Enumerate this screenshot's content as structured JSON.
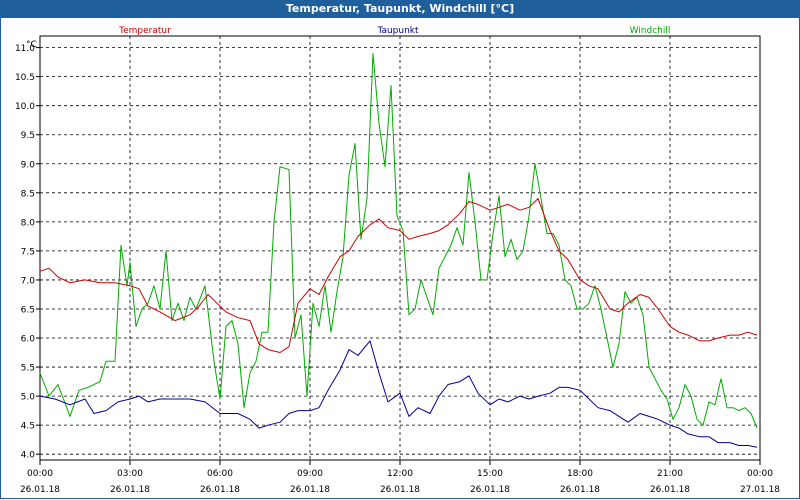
{
  "window": {
    "title": "Temperatur, Taupunkt, Windchill [°C]"
  },
  "chart_data": {
    "type": "line",
    "title": "Temperatur, Taupunkt, Windchill [°C]",
    "ylabel": "°C",
    "ylim": [
      3.9,
      11.2
    ],
    "y_ticks": [
      "4.0",
      "4.5",
      "5.0",
      "5.5",
      "6.0",
      "6.5",
      "7.0",
      "7.5",
      "8.0",
      "8.5",
      "9.0",
      "9.5",
      "10.0",
      "10.5",
      "11.0"
    ],
    "x_ticks": [
      {
        "time": "00:00",
        "date": "26.01.18"
      },
      {
        "time": "03:00",
        "date": "26.01.18"
      },
      {
        "time": "06:00",
        "date": "26.01.18"
      },
      {
        "time": "09:00",
        "date": "26.01.18"
      },
      {
        "time": "12:00",
        "date": "26.01.18"
      },
      {
        "time": "15:00",
        "date": "26.01.18"
      },
      {
        "time": "18:00",
        "date": "26.01.18"
      },
      {
        "time": "21:00",
        "date": "26.01.18"
      },
      {
        "time": "00:00",
        "date": "27.01.18"
      }
    ],
    "x_unit": "hours since 26.01.18 00:00",
    "xlim": [
      0,
      24
    ],
    "grid": true,
    "series": [
      {
        "name": "Temperatur",
        "color": "#cc0000",
        "points": [
          [
            0,
            7.15
          ],
          [
            0.3,
            7.2
          ],
          [
            0.6,
            7.05
          ],
          [
            1,
            6.95
          ],
          [
            1.5,
            7.0
          ],
          [
            2,
            6.95
          ],
          [
            2.5,
            6.95
          ],
          [
            3,
            6.9
          ],
          [
            3.3,
            6.85
          ],
          [
            3.6,
            6.55
          ],
          [
            4,
            6.45
          ],
          [
            4.5,
            6.3
          ],
          [
            5,
            6.4
          ],
          [
            5.3,
            6.55
          ],
          [
            5.6,
            6.75
          ],
          [
            5.9,
            6.6
          ],
          [
            6.2,
            6.45
          ],
          [
            6.6,
            6.35
          ],
          [
            7,
            6.3
          ],
          [
            7.3,
            5.9
          ],
          [
            7.6,
            5.8
          ],
          [
            8,
            5.75
          ],
          [
            8.3,
            5.85
          ],
          [
            8.6,
            6.6
          ],
          [
            9,
            6.85
          ],
          [
            9.3,
            6.75
          ],
          [
            9.6,
            7.05
          ],
          [
            10,
            7.4
          ],
          [
            10.3,
            7.5
          ],
          [
            10.6,
            7.75
          ],
          [
            11,
            7.95
          ],
          [
            11.3,
            8.05
          ],
          [
            11.6,
            7.9
          ],
          [
            12,
            7.85
          ],
          [
            12.3,
            7.7
          ],
          [
            12.6,
            7.75
          ],
          [
            13,
            7.8
          ],
          [
            13.3,
            7.85
          ],
          [
            13.6,
            7.95
          ],
          [
            14,
            8.15
          ],
          [
            14.3,
            8.35
          ],
          [
            14.6,
            8.3
          ],
          [
            15,
            8.2
          ],
          [
            15.3,
            8.25
          ],
          [
            15.6,
            8.3
          ],
          [
            16,
            8.2
          ],
          [
            16.3,
            8.25
          ],
          [
            16.6,
            8.4
          ],
          [
            17,
            7.85
          ],
          [
            17.3,
            7.5
          ],
          [
            17.6,
            7.35
          ],
          [
            18,
            7.0
          ],
          [
            18.3,
            6.9
          ],
          [
            18.6,
            6.85
          ],
          [
            19,
            6.5
          ],
          [
            19.3,
            6.45
          ],
          [
            19.6,
            6.6
          ],
          [
            20,
            6.75
          ],
          [
            20.3,
            6.7
          ],
          [
            20.6,
            6.5
          ],
          [
            21,
            6.2
          ],
          [
            21.3,
            6.1
          ],
          [
            21.6,
            6.05
          ],
          [
            22,
            5.95
          ],
          [
            22.3,
            5.95
          ],
          [
            22.6,
            6.0
          ],
          [
            23,
            6.05
          ],
          [
            23.3,
            6.05
          ],
          [
            23.6,
            6.1
          ],
          [
            23.9,
            6.05
          ]
        ]
      },
      {
        "name": "Taupunkt",
        "color": "#000099",
        "points": [
          [
            0,
            5.0
          ],
          [
            0.5,
            4.95
          ],
          [
            1,
            4.85
          ],
          [
            1.5,
            4.95
          ],
          [
            1.8,
            4.7
          ],
          [
            2.2,
            4.75
          ],
          [
            2.6,
            4.9
          ],
          [
            3,
            4.95
          ],
          [
            3.3,
            5.0
          ],
          [
            3.6,
            4.9
          ],
          [
            4,
            4.95
          ],
          [
            4.5,
            4.95
          ],
          [
            5,
            4.95
          ],
          [
            5.5,
            4.9
          ],
          [
            6,
            4.7
          ],
          [
            6.6,
            4.7
          ],
          [
            7,
            4.6
          ],
          [
            7.3,
            4.45
          ],
          [
            7.6,
            4.5
          ],
          [
            8,
            4.55
          ],
          [
            8.3,
            4.7
          ],
          [
            8.6,
            4.75
          ],
          [
            9,
            4.75
          ],
          [
            9.3,
            4.8
          ],
          [
            9.6,
            5.1
          ],
          [
            10,
            5.45
          ],
          [
            10.3,
            5.8
          ],
          [
            10.6,
            5.7
          ],
          [
            11,
            5.95
          ],
          [
            11.3,
            5.4
          ],
          [
            11.6,
            4.9
          ],
          [
            12,
            5.05
          ],
          [
            12.3,
            4.65
          ],
          [
            12.6,
            4.8
          ],
          [
            13,
            4.7
          ],
          [
            13.3,
            5.0
          ],
          [
            13.6,
            5.2
          ],
          [
            14,
            5.25
          ],
          [
            14.3,
            5.35
          ],
          [
            14.6,
            5.05
          ],
          [
            15,
            4.85
          ],
          [
            15.3,
            4.95
          ],
          [
            15.6,
            4.9
          ],
          [
            16,
            5.0
          ],
          [
            16.3,
            4.95
          ],
          [
            16.6,
            5.0
          ],
          [
            17,
            5.05
          ],
          [
            17.3,
            5.15
          ],
          [
            17.6,
            5.15
          ],
          [
            18,
            5.1
          ],
          [
            18.3,
            4.95
          ],
          [
            18.6,
            4.8
          ],
          [
            19,
            4.75
          ],
          [
            19.3,
            4.65
          ],
          [
            19.6,
            4.55
          ],
          [
            20,
            4.7
          ],
          [
            20.3,
            4.65
          ],
          [
            20.6,
            4.6
          ],
          [
            21,
            4.5
          ],
          [
            21.3,
            4.45
          ],
          [
            21.6,
            4.35
          ],
          [
            22,
            4.3
          ],
          [
            22.3,
            4.3
          ],
          [
            22.6,
            4.2
          ],
          [
            23,
            4.2
          ],
          [
            23.3,
            4.15
          ],
          [
            23.6,
            4.15
          ],
          [
            23.9,
            4.12
          ]
        ]
      },
      {
        "name": "Windchill",
        "color": "#00aa00",
        "points": [
          [
            0,
            5.4
          ],
          [
            0.3,
            5.0
          ],
          [
            0.6,
            5.2
          ],
          [
            1,
            4.65
          ],
          [
            1.3,
            5.1
          ],
          [
            1.6,
            5.15
          ],
          [
            2,
            5.25
          ],
          [
            2.2,
            5.6
          ],
          [
            2.5,
            5.6
          ],
          [
            2.7,
            7.6
          ],
          [
            2.9,
            6.9
          ],
          [
            3.0,
            7.3
          ],
          [
            3.2,
            6.2
          ],
          [
            3.4,
            6.5
          ],
          [
            3.6,
            6.6
          ],
          [
            3.8,
            6.9
          ],
          [
            4,
            6.5
          ],
          [
            4.2,
            7.5
          ],
          [
            4.4,
            6.3
          ],
          [
            4.6,
            6.6
          ],
          [
            4.8,
            6.3
          ],
          [
            5,
            6.7
          ],
          [
            5.2,
            6.5
          ],
          [
            5.5,
            6.9
          ],
          [
            5.8,
            5.6
          ],
          [
            6,
            4.95
          ],
          [
            6.2,
            6.2
          ],
          [
            6.4,
            6.3
          ],
          [
            6.6,
            5.9
          ],
          [
            6.8,
            4.8
          ],
          [
            7,
            5.4
          ],
          [
            7.2,
            5.6
          ],
          [
            7.4,
            6.1
          ],
          [
            7.6,
            6.1
          ],
          [
            7.8,
            8.0
          ],
          [
            8,
            8.95
          ],
          [
            8.3,
            8.9
          ],
          [
            8.5,
            6.0
          ],
          [
            8.7,
            6.4
          ],
          [
            8.9,
            5.0
          ],
          [
            9.1,
            6.6
          ],
          [
            9.3,
            6.2
          ],
          [
            9.5,
            6.9
          ],
          [
            9.7,
            6.1
          ],
          [
            9.9,
            6.8
          ],
          [
            10.1,
            7.4
          ],
          [
            10.3,
            8.8
          ],
          [
            10.5,
            9.35
          ],
          [
            10.7,
            7.7
          ],
          [
            10.9,
            8.4
          ],
          [
            11.1,
            10.9
          ],
          [
            11.3,
            9.7
          ],
          [
            11.5,
            8.95
          ],
          [
            11.7,
            10.35
          ],
          [
            11.9,
            8.1
          ],
          [
            12.1,
            7.85
          ],
          [
            12.3,
            6.4
          ],
          [
            12.5,
            6.5
          ],
          [
            12.7,
            7.0
          ],
          [
            12.9,
            6.7
          ],
          [
            13.1,
            6.4
          ],
          [
            13.3,
            7.2
          ],
          [
            13.5,
            7.4
          ],
          [
            13.7,
            7.6
          ],
          [
            13.9,
            7.9
          ],
          [
            14.1,
            7.6
          ],
          [
            14.3,
            8.85
          ],
          [
            14.5,
            8.0
          ],
          [
            14.7,
            7.0
          ],
          [
            14.9,
            7.0
          ],
          [
            15.1,
            7.8
          ],
          [
            15.3,
            8.45
          ],
          [
            15.5,
            7.4
          ],
          [
            15.7,
            7.7
          ],
          [
            15.9,
            7.35
          ],
          [
            16.1,
            7.5
          ],
          [
            16.3,
            8.1
          ],
          [
            16.5,
            9.0
          ],
          [
            16.7,
            8.4
          ],
          [
            16.9,
            7.8
          ],
          [
            17.1,
            7.8
          ],
          [
            17.3,
            7.6
          ],
          [
            17.5,
            7.0
          ],
          [
            17.7,
            6.9
          ],
          [
            17.9,
            6.5
          ],
          [
            18.1,
            6.5
          ],
          [
            18.3,
            6.6
          ],
          [
            18.5,
            6.9
          ],
          [
            18.7,
            6.5
          ],
          [
            18.9,
            6.0
          ],
          [
            19.1,
            5.5
          ],
          [
            19.3,
            5.9
          ],
          [
            19.5,
            6.8
          ],
          [
            19.7,
            6.6
          ],
          [
            19.9,
            6.7
          ],
          [
            20.1,
            6.4
          ],
          [
            20.3,
            5.5
          ],
          [
            20.5,
            5.3
          ],
          [
            20.7,
            5.1
          ],
          [
            20.9,
            4.95
          ],
          [
            21.1,
            4.6
          ],
          [
            21.3,
            4.8
          ],
          [
            21.5,
            5.2
          ],
          [
            21.7,
            5.0
          ],
          [
            21.9,
            4.6
          ],
          [
            22.1,
            4.5
          ],
          [
            22.3,
            4.9
          ],
          [
            22.5,
            4.85
          ],
          [
            22.7,
            5.3
          ],
          [
            22.9,
            4.8
          ],
          [
            23.1,
            4.8
          ],
          [
            23.3,
            4.75
          ],
          [
            23.5,
            4.8
          ],
          [
            23.7,
            4.7
          ],
          [
            23.9,
            4.45
          ]
        ]
      }
    ]
  }
}
